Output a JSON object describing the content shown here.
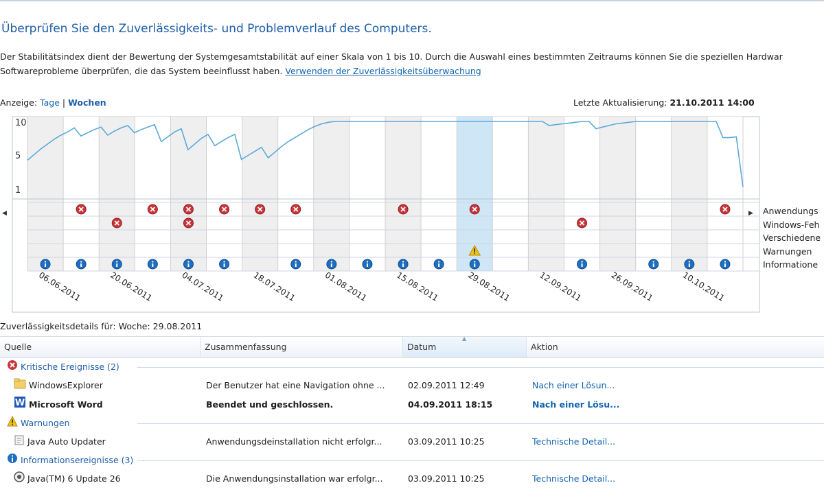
{
  "header": {
    "title": "Überprüfen Sie den Zuverlässigkeits- und Problemverlauf des Computers.",
    "desc_line1": "Der Stabilitätsindex dient der Bewertung der Systemgesamtstabilität auf einer Skala von 1 bis 10. Durch die Auswahl eines bestimmten Zeitraums können Sie die speziellen Hardwar",
    "desc_line2": "Softwareprobleme überprüfen, die das System beeinflusst haben.",
    "link": "Verwenden der Zuverlässigkeitsüberwachung"
  },
  "view": {
    "label": "Anzeige:",
    "days": "Tage",
    "separator": "|",
    "weeks": "Wochen",
    "last_update_label": "Letzte Aktualisierung:",
    "last_update_value": "21.10.2011 14:00"
  },
  "chart_data": {
    "type": "line",
    "y_ticks": [
      "10",
      "5",
      "1"
    ],
    "ylim": [
      1,
      10
    ],
    "selected_week": "29.08.2011",
    "x_labels": [
      "06.06.2011",
      "20.06.2011",
      "04.07.2011",
      "18.07.2011",
      "01.08.2011",
      "15.08.2011",
      "29.08.2011",
      "12.09.2011",
      "26.09.2011",
      "10.10.2011"
    ],
    "stability_index": [
      5.2,
      5.9,
      6.6,
      7.2,
      7.8,
      8.3,
      8.7,
      9.2,
      8.2,
      8.6,
      9.0,
      9.3,
      8.3,
      8.8,
      9.2,
      9.5,
      8.6,
      9.0,
      9.3,
      9.6,
      7.5,
      8.1,
      8.7,
      9.1,
      6.5,
      7.2,
      7.9,
      8.4,
      7.0,
      7.5,
      8.0,
      8.4,
      5.3,
      5.8,
      6.3,
      6.8,
      5.5,
      6.2,
      6.9,
      7.5,
      8.0,
      8.5,
      9.0,
      9.4,
      9.7,
      9.9,
      10,
      10,
      10,
      10,
      10,
      10,
      10,
      10,
      10,
      10,
      10,
      10,
      10,
      10,
      10,
      10,
      10,
      10,
      10,
      10,
      10,
      10,
      10,
      10,
      10,
      10,
      10,
      10,
      10,
      10,
      10,
      10,
      9.5,
      9.6,
      9.7,
      9.8,
      9.9,
      10,
      10,
      9.1,
      9.3,
      9.5,
      9.7,
      9.8,
      9.9,
      10,
      10,
      10,
      10,
      10,
      10,
      10,
      10,
      10,
      10,
      10,
      10,
      10,
      8.0,
      8.0,
      8.1,
      1.9
    ],
    "event_rows": [
      "Anwendungs",
      "Windows-Feh",
      "Verschiedene",
      "Warnungen",
      "Informatione"
    ],
    "events": {
      "app_errors": [
        2,
        4,
        5,
        6,
        7,
        8,
        11,
        13,
        20
      ],
      "windows_errors": [
        3,
        5,
        16
      ],
      "misc": [],
      "warnings": [
        13
      ],
      "info": [
        1,
        2,
        3,
        4,
        5,
        6,
        8,
        9,
        10,
        11,
        12,
        13,
        16,
        18,
        19,
        20
      ]
    }
  },
  "details": {
    "title": "Zuverlässigkeitsdetails für: Woche: 29.08.2011",
    "columns": [
      "Quelle",
      "Zusammenfassung",
      "Datum",
      "Aktion"
    ],
    "groups": [
      {
        "icon": "error-icon",
        "label": "Kritische Ereignisse (2)",
        "rows": [
          {
            "icon": "explorer-icon",
            "source": "WindowsExplorer",
            "summary": "Der Benutzer hat eine Navigation ohne ...",
            "date": "02.09.2011 12:49",
            "action": "Nach einer Lösun...",
            "bold": false
          },
          {
            "icon": "word-icon",
            "source": "Microsoft Word",
            "summary": "Beendet und geschlossen.",
            "date": "04.09.2011 18:15",
            "action": "Nach einer Lösu...",
            "bold": true
          }
        ]
      },
      {
        "icon": "warning-icon",
        "label": "Warnungen",
        "rows": [
          {
            "icon": "java-icon",
            "source": "Java Auto Updater",
            "summary": "Anwendungsdeinstallation nicht erfolgr...",
            "date": "03.09.2011 10:25",
            "action": "Technische Detail...",
            "bold": false
          }
        ]
      },
      {
        "icon": "info-icon",
        "label": "Informationsereignisse (3)",
        "rows": [
          {
            "icon": "install-icon",
            "source": "Java(TM) 6 Update 26",
            "summary": "Die Anwendungsinstallation war erfolgr...",
            "date": "03.09.2011 10:25",
            "action": "Technische Detail...",
            "bold": false
          }
        ]
      }
    ]
  },
  "colors": {
    "accent": "#1d5ea8",
    "link": "#1264b0",
    "line": "#5aa9d8",
    "selected": "#cfe6f7",
    "error": "#c9353b",
    "warning": "#f3c21a",
    "info": "#1f6fc0"
  }
}
